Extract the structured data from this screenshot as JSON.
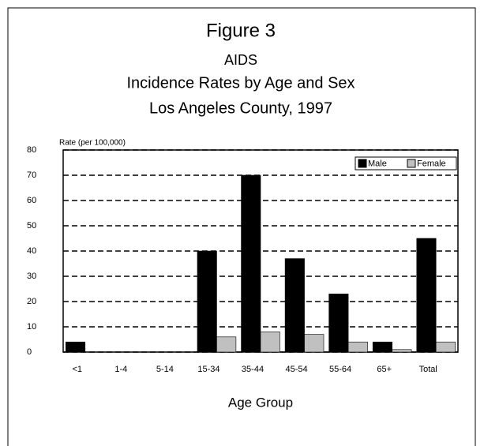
{
  "chart_data": {
    "type": "bar",
    "title": "Figure 3",
    "subtitle": [
      "AIDS",
      "Incidence Rates by Age and Sex",
      "Los Angeles County,  1997"
    ],
    "y_label": "Rate (per 100,000)",
    "x_label": "Age Group",
    "categories": [
      "<1",
      "1-4",
      "5-14",
      "15-34",
      "35-44",
      "45-54",
      "55-64",
      "65+",
      "Total"
    ],
    "series": [
      {
        "name": "Male",
        "color": "#000000",
        "values": [
          4,
          0,
          0,
          40,
          70,
          37,
          23,
          4,
          45
        ]
      },
      {
        "name": "Female",
        "color": "#c0c0c0",
        "values": [
          0,
          0,
          0,
          6,
          8,
          7,
          4,
          1,
          4
        ]
      }
    ],
    "ylim": [
      0,
      80
    ],
    "yticks": [
      0,
      10,
      20,
      30,
      40,
      50,
      60,
      70,
      80
    ],
    "grid": true,
    "legend": "top-right"
  }
}
